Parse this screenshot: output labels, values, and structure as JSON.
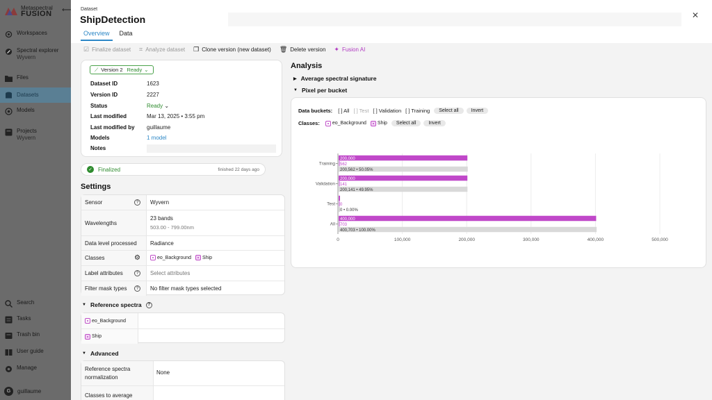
{
  "sidebar": {
    "brand_line1": "Metaspectral",
    "brand_line2": "FUSION",
    "items": [
      {
        "label": "Workspaces",
        "sub": ""
      },
      {
        "label": "Spectral explorer",
        "sub": "Wyvern"
      },
      {
        "label": "Files",
        "sub": ""
      },
      {
        "label": "Datasets",
        "sub": ""
      },
      {
        "label": "Models",
        "sub": ""
      },
      {
        "label": "Projects",
        "sub": "Wyvern"
      },
      {
        "label": "Search",
        "sub": ""
      },
      {
        "label": "Tasks",
        "sub": ""
      },
      {
        "label": "Trash bin",
        "sub": ""
      },
      {
        "label": "User guide",
        "sub": ""
      },
      {
        "label": "Manage",
        "sub": ""
      }
    ],
    "user": {
      "initial": "G",
      "name": "guillaume"
    }
  },
  "header": {
    "breadcrumb": "Dataset",
    "title": "ShipDetection",
    "tabs": [
      {
        "label": "Overview"
      },
      {
        "label": "Data"
      }
    ]
  },
  "toolbar": {
    "finalize": "Finalize dataset",
    "analyze": "Analyze dataset",
    "clone": "Clone version (new dataset)",
    "delete": "Delete version",
    "ai": "Fusion AI"
  },
  "info": {
    "version_label": "Version 2",
    "version_status": "Ready",
    "rows": [
      {
        "key": "Dataset ID",
        "value": "1623"
      },
      {
        "key": "Version ID",
        "value": "2227"
      },
      {
        "key": "Status",
        "value": "Ready"
      },
      {
        "key": "Last modified",
        "value": "Mar 13, 2025 • 3:55 pm"
      },
      {
        "key": "Last modified by",
        "value": "guillaume"
      },
      {
        "key": "Models",
        "value": "1 model"
      },
      {
        "key": "Notes",
        "value": ""
      }
    ]
  },
  "finalized": {
    "label": "Finalized",
    "when": "finished 22 days ago"
  },
  "settings": {
    "title": "Settings",
    "sensor": {
      "key": "Sensor",
      "value": "Wyvern"
    },
    "wavelengths": {
      "key": "Wavelengths",
      "value": "23 bands",
      "range": "503.00 - 799.00nm"
    },
    "data_level": {
      "key": "Data level processed",
      "value": "Radiance"
    },
    "classes": {
      "key": "Classes",
      "items": [
        "eo_Background",
        "Ship"
      ]
    },
    "label_attributes": {
      "key": "Label attributes",
      "placeholder": "Select attributes"
    },
    "filter_mask": {
      "key": "Filter mask types",
      "value": "No filter mask types selected"
    }
  },
  "reference_spectra": {
    "title": "Reference spectra",
    "items": [
      "eo_Background",
      "Ship"
    ]
  },
  "advanced": {
    "title": "Advanced",
    "normalization": {
      "key": "Reference spectra normalization",
      "value": "None"
    },
    "classes_to_average": {
      "key": "Classes to average",
      "value": ""
    }
  },
  "analysis": {
    "title": "Analysis",
    "avg_signature": "Average spectral signature",
    "pixel_per_bucket": "Pixel per bucket",
    "buckets_label": "Data buckets:",
    "bucket_options": [
      "[ ] All",
      "[ ] Test",
      "[ ] Validation",
      "[ ] Training"
    ],
    "classes_label": "Classes:",
    "class_options": [
      "eo_Background",
      "Ship"
    ],
    "select_all": "Select all",
    "invert": "Invert"
  },
  "colors": {
    "accent": "#2c87c6",
    "ready": "#2e8b2e",
    "background_bar": "#c048c9",
    "ship_bar": "#dca3e4",
    "total_bar": "#d9d9d9",
    "ai": "#b13ac2"
  },
  "chart_data": {
    "type": "bar",
    "orientation": "horizontal",
    "categories": [
      "Training",
      "Validation",
      "Test",
      "All"
    ],
    "series": [
      {
        "name": "eo_Background",
        "values": [
          200000,
          200000,
          0,
          400000
        ],
        "labels": [
          "200,000",
          "200,000",
          "0",
          "400,000"
        ]
      },
      {
        "name": "Ship",
        "values": [
          562,
          141,
          0,
          703
        ],
        "labels": [
          "562",
          "141",
          "0",
          "703"
        ]
      },
      {
        "name": "",
        "values": [
          200562,
          200141,
          0,
          400703
        ],
        "labels": [
          "200,562 • 50.05%",
          "200,141 • 49.95%",
          "0 • 0.00%",
          "400,703 • 100.00%"
        ]
      }
    ],
    "xlim": [
      0,
      500000
    ],
    "xticks": [
      "0",
      "100,000",
      "200,000",
      "300,000",
      "400,000",
      "500,000"
    ],
    "grid": true
  }
}
